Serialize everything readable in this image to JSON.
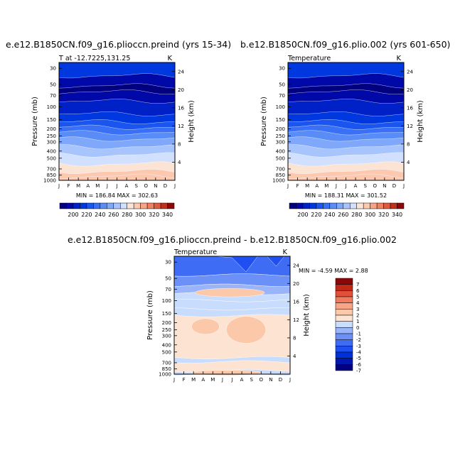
{
  "chart_data": [
    {
      "type": "contour",
      "title": "e.e12.B1850CN.f09_g16.plioccn.preind (yrs 15-34)",
      "subtitle": "T at -12.7225,131.25",
      "units": "K",
      "ylabel": "Pressure (mb)",
      "ylabel_right": "Height (km)",
      "x_ticks": [
        "J",
        "F",
        "M",
        "A",
        "M",
        "J",
        "J",
        "A",
        "S",
        "O",
        "N",
        "D",
        "J"
      ],
      "y_ticks": [
        "30",
        "50",
        "70",
        "100",
        "150",
        "200",
        "250",
        "300",
        "400",
        "500",
        "700",
        "850",
        "1000"
      ],
      "y_right_ticks": [
        "24",
        "20",
        "16",
        "12",
        "8",
        "4"
      ],
      "min_max_text": "MIN = 186.84  MAX = 302.63",
      "min": 186.84,
      "max": 302.63,
      "colorbar_levels": [
        "200",
        "220",
        "240",
        "260",
        "280",
        "300",
        "320",
        "340"
      ],
      "band_levels": [
        210,
        195,
        185,
        190,
        200,
        215,
        225,
        235,
        245,
        255,
        265,
        275,
        285,
        292,
        299
      ]
    },
    {
      "type": "contour",
      "title": "b.e12.B1850CN.f09_g16.plio.002 (yrs 601-650)",
      "subtitle": "Temperature",
      "units": "K",
      "ylabel": "Pressure (mb)",
      "ylabel_right": "Height (km)",
      "x_ticks": [
        "J",
        "F",
        "M",
        "A",
        "M",
        "J",
        "J",
        "A",
        "S",
        "O",
        "N",
        "D",
        "J"
      ],
      "y_ticks": [
        "30",
        "50",
        "70",
        "100",
        "150",
        "200",
        "250",
        "300",
        "400",
        "500",
        "700",
        "850",
        "1000"
      ],
      "y_right_ticks": [
        "24",
        "20",
        "16",
        "12",
        "8",
        "4"
      ],
      "min_max_text": "MIN = 188.31  MAX = 301.52",
      "min": 188.31,
      "max": 301.52,
      "colorbar_levels": [
        "200",
        "220",
        "240",
        "260",
        "280",
        "300",
        "320",
        "340"
      ],
      "band_levels": [
        210,
        195,
        185,
        190,
        200,
        215,
        225,
        235,
        245,
        255,
        265,
        275,
        285,
        292,
        299
      ]
    },
    {
      "type": "contour",
      "title": "e.e12.B1850CN.f09_g16.plioccn.preind - b.e12.B1850CN.f09_g16.plio.002",
      "subtitle": "Temperature",
      "units": "K",
      "ylabel": "Pressure (mb)",
      "ylabel_right": "Height (km)",
      "x_ticks": [
        "J",
        "F",
        "M",
        "A",
        "M",
        "J",
        "J",
        "A",
        "S",
        "O",
        "N",
        "D",
        "J"
      ],
      "y_ticks": [
        "30",
        "50",
        "70",
        "100",
        "150",
        "200",
        "250",
        "300",
        "400",
        "500",
        "700",
        "850",
        "1000"
      ],
      "y_right_ticks": [
        "24",
        "20",
        "16",
        "12",
        "8",
        "4"
      ],
      "min_max_text": "MIN =   -4.59  MAX =    2.88",
      "min": -4.59,
      "max": 2.88,
      "colorbar_levels": [
        "7",
        "6",
        "5",
        "4",
        "3",
        "2",
        "1",
        "0",
        "-1",
        "-2",
        "-3",
        "-4",
        "-5",
        "-6",
        "-7"
      ]
    }
  ],
  "colors": {
    "temp": [
      "#000080",
      "#0008a8",
      "#0020c8",
      "#0038e0",
      "#1a55f0",
      "#3a70f5",
      "#5a8cf8",
      "#80a8fa",
      "#a8c4fc",
      "#d0e0fe",
      "#fce4d4",
      "#fcc8b0",
      "#f8a484",
      "#f08060",
      "#e05a40",
      "#c0301c",
      "#8c0808"
    ],
    "diff": [
      "#000080",
      "#0018b0",
      "#0030d8",
      "#1f4ff0",
      "#3f6cf5",
      "#6b90f8",
      "#9ab4fa",
      "#c8dcfd",
      "#fde4d2",
      "#fcc8aa",
      "#f8a486",
      "#f07c60",
      "#e0503a",
      "#c02818",
      "#8c0808"
    ]
  }
}
